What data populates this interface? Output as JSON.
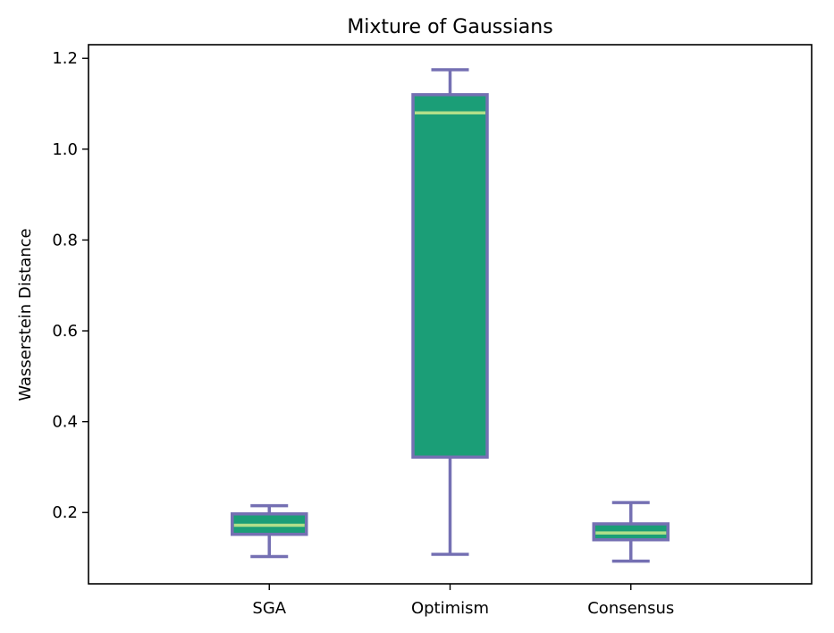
{
  "chart_data": {
    "type": "box",
    "title": "Mixture of Gaussians",
    "xlabel": "",
    "ylabel": "Wasserstein Distance",
    "ylim": [
      0.043,
      1.23
    ],
    "yticks": [
      0.2,
      0.4,
      0.6,
      0.8,
      1.0,
      1.2
    ],
    "ytick_labels": [
      "0.2",
      "0.4",
      "0.6",
      "0.8",
      "1.0",
      "1.2"
    ],
    "categories": [
      "SGA",
      "Optimism",
      "Consensus"
    ],
    "boxes": [
      {
        "label": "SGA",
        "whisker_low": 0.103,
        "q1": 0.152,
        "median": 0.172,
        "q3": 0.197,
        "whisker_high": 0.215
      },
      {
        "label": "Optimism",
        "whisker_low": 0.108,
        "q1": 0.322,
        "median": 1.08,
        "q3": 1.12,
        "whisker_high": 1.175
      },
      {
        "label": "Consensus",
        "whisker_low": 0.093,
        "q1": 0.14,
        "median": 0.155,
        "q3": 0.175,
        "whisker_high": 0.222
      }
    ],
    "grid": false,
    "colors": {
      "box_fill": "#1b9e77",
      "box_edge": "#7570b3",
      "median": "#b2df8a",
      "axis": "#000000"
    }
  }
}
